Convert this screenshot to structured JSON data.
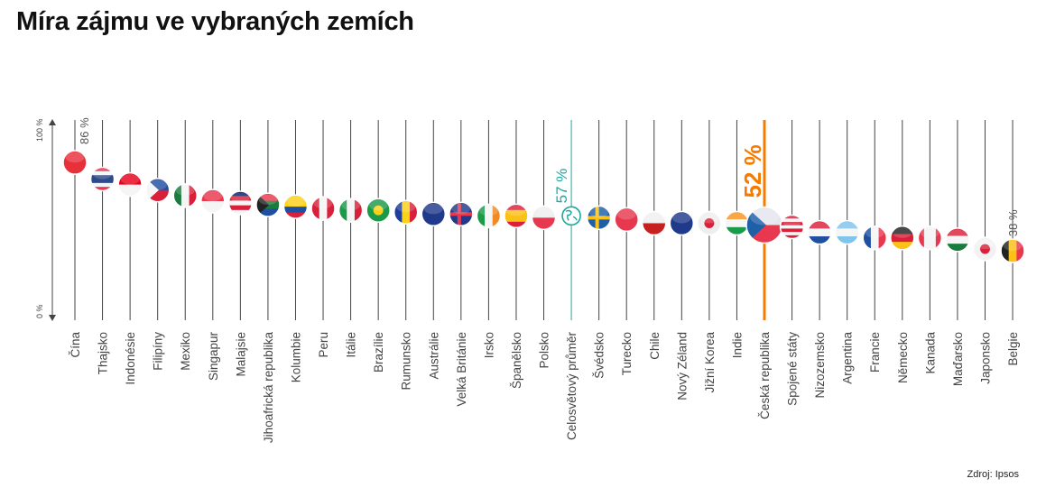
{
  "chart_data": {
    "type": "scatter",
    "title": "Míra zájmu ve vybraných zemích",
    "source": "Zdroj: Ipsos",
    "ylim": [
      0,
      100
    ],
    "y_ticks": [
      "0 %",
      "100 %"
    ],
    "highlight_colors": {
      "global": "#1aa8a0",
      "czech": "#f57c00",
      "line": "#444444"
    },
    "value_labels": [
      {
        "index": 0,
        "text": "86 %",
        "style": "normal"
      },
      {
        "index": 18,
        "text": "57 %",
        "style": "global"
      },
      {
        "index": 25,
        "text": "52 %",
        "style": "czech"
      },
      {
        "index": 34,
        "text": "38 %",
        "style": "normal"
      }
    ],
    "points": [
      {
        "label": "Čína",
        "value": 86,
        "dir": "h",
        "stripes": [
          "#e8303a"
        ]
      },
      {
        "label": "Thajsko",
        "value": 77,
        "dir": "h",
        "stripes": [
          "#e8384f",
          "#f5f5f5",
          "#2d4a8a",
          "#2d4a8a",
          "#f5f5f5",
          "#e8384f"
        ]
      },
      {
        "label": "Indonésie",
        "value": 74,
        "dir": "h",
        "stripes": [
          "#e8001c",
          "#f5f5f5"
        ]
      },
      {
        "label": "Filipíny",
        "value": 71,
        "dir": "h",
        "stripes": [
          "#1f4fa0",
          "#d8203a"
        ],
        "tri": "#f5f5f5"
      },
      {
        "label": "Mexiko",
        "value": 68,
        "dir": "v",
        "stripes": [
          "#1b7a3e",
          "#f5f5f5",
          "#d8203a"
        ]
      },
      {
        "label": "Singapur",
        "value": 65,
        "dir": "h",
        "stripes": [
          "#e8384f",
          "#f5f5f5"
        ]
      },
      {
        "label": "Malajsie",
        "value": 64,
        "dir": "h",
        "stripes": [
          "#0a1f6b",
          "#d8203a",
          "#f5f5f5",
          "#d8203a",
          "#f5f5f5"
        ]
      },
      {
        "label": "Jihoafrická republika",
        "value": 63,
        "dir": "h",
        "stripes": [
          "#e8384f",
          "#1b7a3e",
          "#1f4fa0"
        ],
        "tri": "#222222"
      },
      {
        "label": "Kolumbie",
        "value": 62,
        "dir": "h",
        "stripes": [
          "#fcd116",
          "#fcd116",
          "#1f4fa0",
          "#d8203a"
        ]
      },
      {
        "label": "Peru",
        "value": 61,
        "dir": "v",
        "stripes": [
          "#d8203a",
          "#f5f5f5",
          "#d8203a"
        ]
      },
      {
        "label": "Itálie",
        "value": 60,
        "dir": "v",
        "stripes": [
          "#1b9a4a",
          "#f5f5f5",
          "#d8203a"
        ]
      },
      {
        "label": "Brazílie",
        "value": 60,
        "dir": "h",
        "stripes": [
          "#1b9a4a"
        ],
        "dot": "#fcd116"
      },
      {
        "label": "Rumunsko",
        "value": 59,
        "dir": "v",
        "stripes": [
          "#1f3f9a",
          "#fcd116",
          "#d8203a"
        ]
      },
      {
        "label": "Austrálie",
        "value": 58,
        "dir": "h",
        "stripes": [
          "#1f3a8a"
        ]
      },
      {
        "label": "Velká Británie",
        "value": 58,
        "dir": "h",
        "stripes": [
          "#1f3a8a"
        ],
        "cross": "#e8384f"
      },
      {
        "label": "Irsko",
        "value": 57,
        "dir": "v",
        "stripes": [
          "#1b9a4a",
          "#f5f5f5",
          "#f08a24"
        ]
      },
      {
        "label": "Španělsko",
        "value": 57,
        "dir": "h",
        "stripes": [
          "#d8203a",
          "#fcc116",
          "#fcc116",
          "#d8203a"
        ]
      },
      {
        "label": "Polsko",
        "value": 56,
        "dir": "h",
        "stripes": [
          "#eeeeee",
          "#e8384f"
        ]
      },
      {
        "label": "Celosvětový průměr",
        "value": 57,
        "global": true
      },
      {
        "label": "Švédsko",
        "value": 56,
        "dir": "h",
        "stripes": [
          "#1f5fa8"
        ],
        "cross": "#fcc116"
      },
      {
        "label": "Turecko",
        "value": 55,
        "dir": "h",
        "stripes": [
          "#e8384f"
        ]
      },
      {
        "label": "Chile",
        "value": 53,
        "dir": "h",
        "stripes": [
          "#f0f0f0",
          "#c8201f"
        ]
      },
      {
        "label": "Nový Zéland",
        "value": 53,
        "dir": "h",
        "stripes": [
          "#1f3a8a"
        ]
      },
      {
        "label": "Jižní Korea",
        "value": 53,
        "dir": "h",
        "stripes": [
          "#eeeeee"
        ],
        "dot": "#d8203a"
      },
      {
        "label": "Indie",
        "value": 53,
        "dir": "h",
        "stripes": [
          "#f7931e",
          "#f5f5f5",
          "#1b9a4a"
        ]
      },
      {
        "label": "Česká republika",
        "value": 52,
        "czech": true,
        "dir": "h",
        "stripes": [
          "#e4e6ee",
          "#e8384f"
        ],
        "tri": "#1f5fa8"
      },
      {
        "label": "Spojené státy",
        "value": 51,
        "dir": "h",
        "stripes": [
          "#d8203a",
          "#f5f5f5",
          "#d8203a",
          "#f5f5f5",
          "#d8203a",
          "#f5f5f5",
          "#d8203a"
        ]
      },
      {
        "label": "Nizozemsko",
        "value": 48,
        "dir": "h",
        "stripes": [
          "#d8203a",
          "#f5f5f5",
          "#1f4fa0"
        ]
      },
      {
        "label": "Argentina",
        "value": 48,
        "dir": "h",
        "stripes": [
          "#7fc4ec",
          "#f5f5f5",
          "#7fc4ec"
        ]
      },
      {
        "label": "Francie",
        "value": 45,
        "dir": "v",
        "stripes": [
          "#1f4fa0",
          "#f5f5f5",
          "#e8384f"
        ]
      },
      {
        "label": "Německo",
        "value": 45,
        "dir": "h",
        "stripes": [
          "#222222",
          "#d8203a",
          "#fcc116"
        ]
      },
      {
        "label": "Kanada",
        "value": 45,
        "dir": "v",
        "stripes": [
          "#e8384f",
          "#f5f5f5",
          "#f5f5f5",
          "#e8384f"
        ]
      },
      {
        "label": "Maďarsko",
        "value": 44,
        "dir": "h",
        "stripes": [
          "#d8203a",
          "#f5f5f5",
          "#1b7a3e"
        ]
      },
      {
        "label": "Japonsko",
        "value": 39,
        "dir": "h",
        "stripes": [
          "#f2f2f2"
        ],
        "dot": "#d8203a"
      },
      {
        "label": "Belgie",
        "value": 38,
        "dir": "v",
        "stripes": [
          "#222222",
          "#fcc116",
          "#e8384f"
        ]
      }
    ]
  }
}
